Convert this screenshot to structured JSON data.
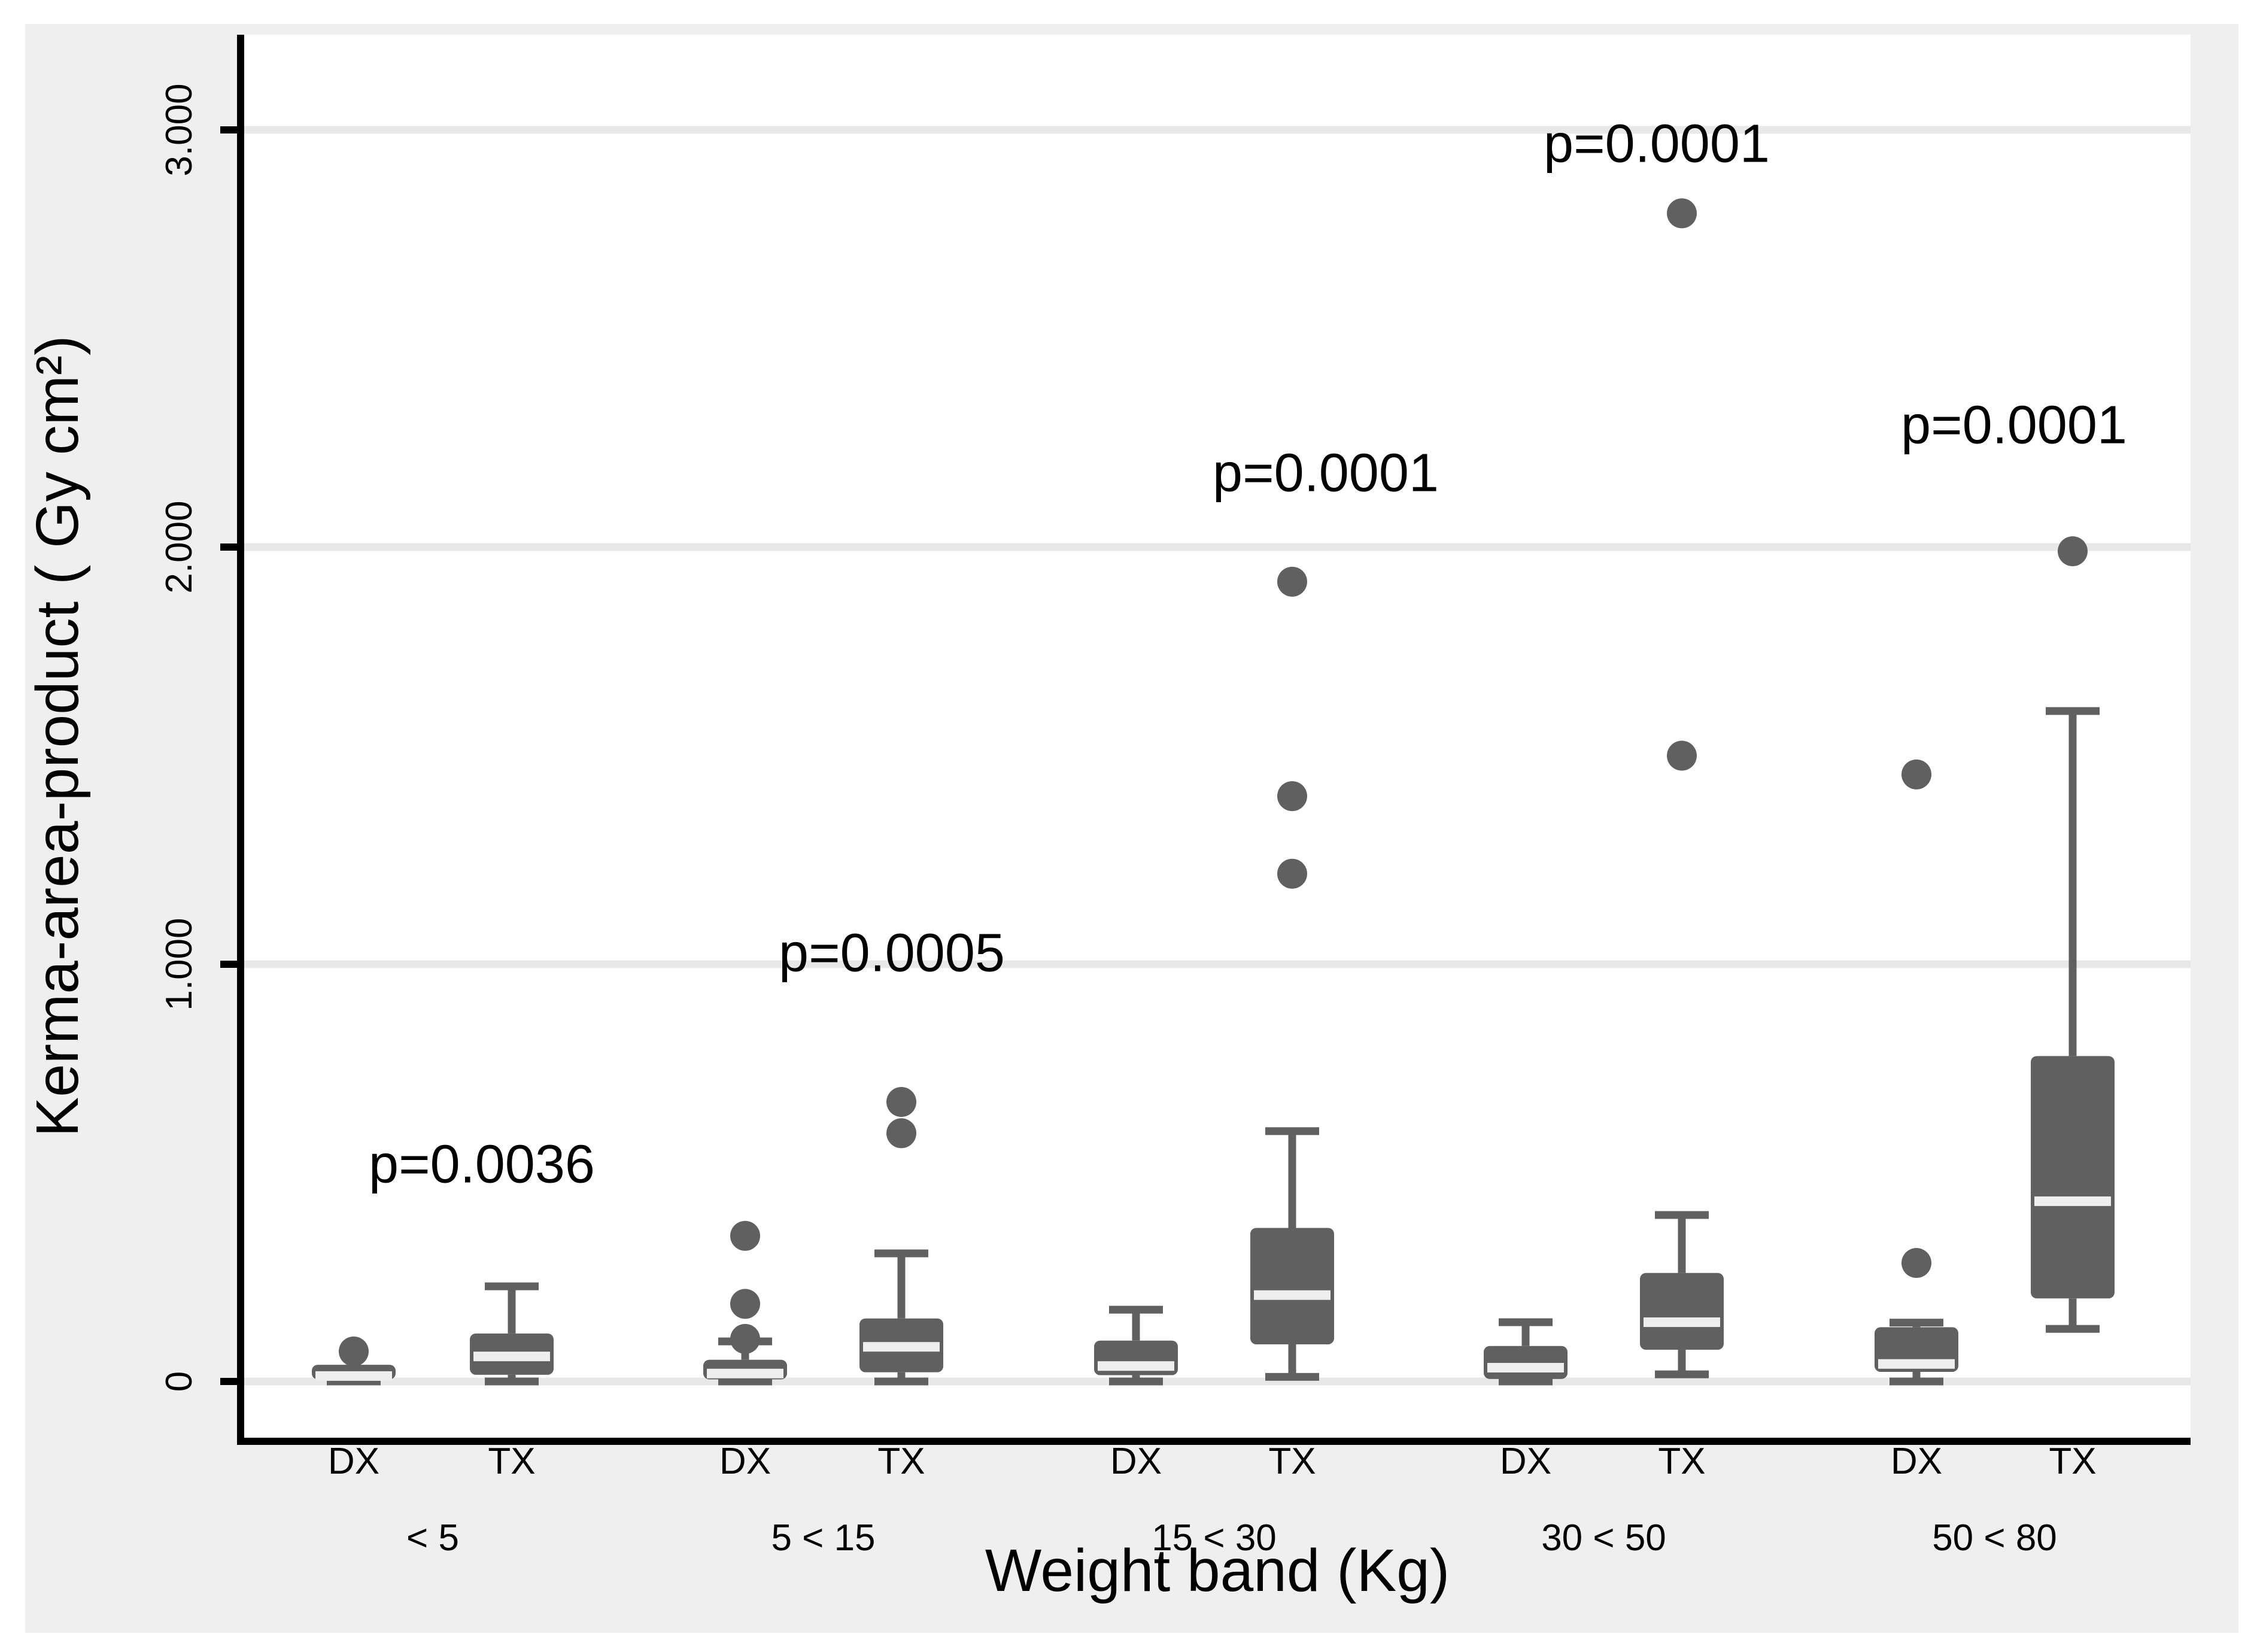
{
  "chart_data": {
    "type": "box",
    "title": "",
    "ylabel": "Kerma-area-product ( Gy cm²)",
    "xlabel": "Weight band (Kg)",
    "legend": null,
    "grid": "horizontal",
    "ylim": [
      -0.135,
      3.225
    ],
    "y_ticks": [
      {
        "value": 0,
        "label": "0"
      },
      {
        "value": 1,
        "label": "1.000"
      },
      {
        "value": 2,
        "label": "2.000"
      },
      {
        "value": 3,
        "label": "3.000"
      }
    ],
    "arm_labels": [
      "DX",
      "TX"
    ],
    "groups": [
      {
        "label": "< 5",
        "p_label": "p=0.0036",
        "p_anchor": {
          "x": 805,
          "y": 1943
        },
        "boxes": [
          {
            "arm": "DX",
            "whisker_low": 0.0,
            "q1": 0.005,
            "median": 0.013,
            "q3": 0.04,
            "whisker_high": 0.04,
            "outliers": [
              0.072
            ]
          },
          {
            "arm": "TX",
            "whisker_low": 0.0,
            "q1": 0.016,
            "median": 0.06,
            "q3": 0.115,
            "whisker_high": 0.228,
            "outliers": []
          }
        ]
      },
      {
        "label": "5 < 15",
        "p_label": "p=0.0005",
        "p_anchor": {
          "x": 1490,
          "y": 1590
        },
        "boxes": [
          {
            "arm": "DX",
            "whisker_low": 0.0,
            "q1": 0.005,
            "median": 0.019,
            "q3": 0.052,
            "whisker_high": 0.096,
            "outliers": [
              0.102,
              0.186,
              0.349
            ]
          },
          {
            "arm": "TX",
            "whisker_low": 0.0,
            "q1": 0.022,
            "median": 0.083,
            "q3": 0.151,
            "whisker_high": 0.307,
            "outliers": [
              0.595,
              0.67
            ]
          }
        ]
      },
      {
        "label": "15 < 30",
        "p_label": "p=0.0001",
        "p_anchor": {
          "x": 2215,
          "y": 788
        },
        "boxes": [
          {
            "arm": "DX",
            "whisker_low": 0.0,
            "q1": 0.015,
            "median": 0.037,
            "q3": 0.098,
            "whisker_high": 0.172,
            "outliers": []
          },
          {
            "arm": "TX",
            "whisker_low": 0.011,
            "q1": 0.089,
            "median": 0.207,
            "q3": 0.368,
            "whisker_high": 0.6,
            "outliers": [
              1.217,
              1.403,
              1.917
            ]
          }
        ]
      },
      {
        "label": "30 < 50",
        "p_label": "p=0.0001",
        "p_anchor": {
          "x": 2768,
          "y": 238
        },
        "boxes": [
          {
            "arm": "DX",
            "whisker_low": 0.0,
            "q1": 0.006,
            "median": 0.033,
            "q3": 0.085,
            "whisker_high": 0.142,
            "outliers": []
          },
          {
            "arm": "TX",
            "whisker_low": 0.017,
            "q1": 0.076,
            "median": 0.142,
            "q3": 0.26,
            "whisker_high": 0.399,
            "outliers": [
              1.5,
              2.8
            ]
          }
        ]
      },
      {
        "label": "50 < 80",
        "p_label": "p=0.0001",
        "p_anchor": {
          "x": 3365,
          "y": 708
        },
        "boxes": [
          {
            "arm": "DX",
            "whisker_low": 0.0,
            "q1": 0.023,
            "median": 0.042,
            "q3": 0.13,
            "whisker_high": 0.141,
            "outliers": [
              0.284,
              1.455
            ]
          },
          {
            "arm": "TX",
            "whisker_low": 0.126,
            "q1": 0.199,
            "median": 0.432,
            "q3": 0.78,
            "whisker_high": 1.607,
            "outliers": [
              1.99
            ]
          }
        ]
      }
    ],
    "colors": {
      "page_background": "#ffffff",
      "figure_background": "#efefef",
      "plot_background": "#ffffff",
      "gridline": "#e8e8e8",
      "box_fill": "#606060",
      "median_line": "#eeeeee",
      "axis_line": "#000000",
      "text": "#000000"
    }
  }
}
